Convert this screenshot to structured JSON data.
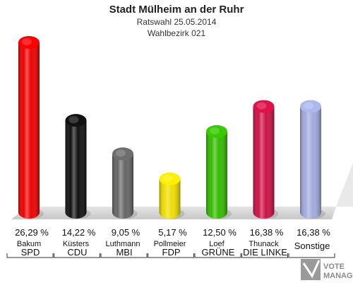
{
  "chart_data": {
    "type": "bar",
    "title": "Stadt Mülheim an der Ruhr",
    "subtitle": "Ratswahl 25.05.2014",
    "subtitle2": "Wahlbezirk 021",
    "categories": [
      "SPD",
      "CDU",
      "MBI",
      "FDP",
      "GRÜNE",
      "DIE LINKE",
      "Sonstige"
    ],
    "candidates": [
      "Bakum",
      "Küsters",
      "Luthmann",
      "Pollmeier",
      "Loef",
      "Thunack",
      ""
    ],
    "values": [
      26.29,
      14.22,
      9.05,
      5.17,
      12.5,
      16.38,
      16.38
    ],
    "value_labels": [
      "26,29 %",
      "14,22 %",
      "9,05 %",
      "5,17 %",
      "12,50 %",
      "16,38 %",
      "16,38 %"
    ],
    "colors": [
      "#ee0000",
      "#111111",
      "#666666",
      "#eedd00",
      "#33bb00",
      "#cc1144",
      "#a0aadd"
    ],
    "ylim": [
      0,
      26.29
    ],
    "grid": false,
    "legend": "none"
  },
  "logo": {
    "line1": "VOTE",
    "line2": "MANAGER"
  }
}
